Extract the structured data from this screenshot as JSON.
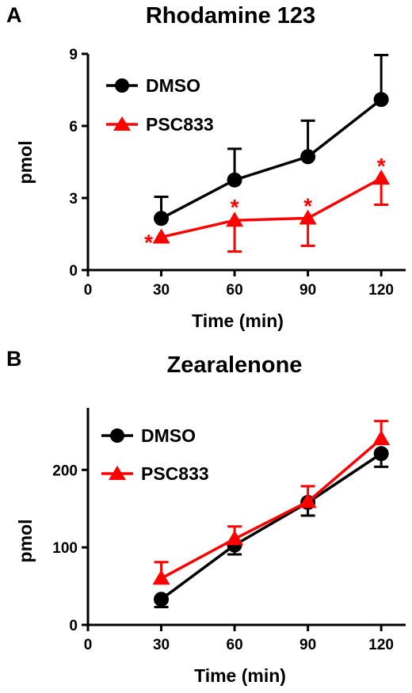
{
  "chart_data": [
    {
      "panel": "A",
      "type": "line",
      "title": "Rhodamine 123",
      "xlabel": "Time (min)",
      "ylabel": "pmol",
      "x": [
        30,
        60,
        90,
        120
      ],
      "xlim": [
        0,
        130
      ],
      "ylim": [
        0,
        9
      ],
      "xticks": [
        "0",
        "30",
        "60",
        "90",
        "120"
      ],
      "yticks": [
        "0",
        "3",
        "6",
        "9"
      ],
      "legend_position": "top-left",
      "series": [
        {
          "name": "DMSO",
          "color": "#000000",
          "marker": "circle",
          "values": [
            2.15,
            3.75,
            4.72,
            7.1
          ],
          "error": [
            0.9,
            1.3,
            1.5,
            1.85
          ],
          "error_dir": "up"
        },
        {
          "name": "PSC833",
          "color": "#ff0000",
          "marker": "triangle",
          "values": [
            1.37,
            2.07,
            2.16,
            3.82
          ],
          "error": [
            0.0,
            1.3,
            1.15,
            1.1
          ],
          "error_dir": "down"
        }
      ],
      "annotations": [
        {
          "text": "*",
          "x": 30,
          "y": 1.37
        },
        {
          "text": "*",
          "x": 60,
          "y": 2.07
        },
        {
          "text": "*",
          "x": 90,
          "y": 2.16
        },
        {
          "text": "*",
          "x": 120,
          "y": 3.82
        }
      ]
    },
    {
      "panel": "B",
      "type": "line",
      "title": "Zearalenone",
      "xlabel": "Time (min)",
      "ylabel": "pmol",
      "x": [
        30,
        60,
        90,
        120
      ],
      "xlim": [
        0,
        130
      ],
      "ylim": [
        0,
        280
      ],
      "xticks": [
        "0",
        "30",
        "60",
        "90",
        "120"
      ],
      "yticks": [
        "0",
        "100",
        "200"
      ],
      "legend_position": "top-left",
      "series": [
        {
          "name": "DMSO",
          "color": "#000000",
          "marker": "circle",
          "values": [
            33,
            103,
            158,
            221
          ],
          "error": [
            10,
            12,
            17,
            17
          ],
          "error_dir": "down"
        },
        {
          "name": "PSC833",
          "color": "#ff0000",
          "marker": "triangle",
          "values": [
            60,
            111,
            159,
            240
          ],
          "error": [
            21,
            16,
            20,
            23
          ],
          "error_dir": "up"
        }
      ],
      "annotations": []
    }
  ]
}
